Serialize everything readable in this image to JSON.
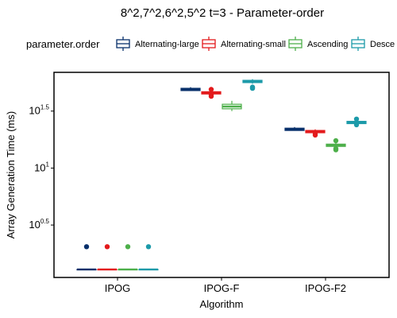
{
  "chart_data": {
    "type": "box",
    "title": "8^2,7^2,6^2,5^2 t=3 - Parameter-order",
    "xlabel": "Algorithm",
    "ylabel": "Array Generation Time (ms)",
    "y_scale": "log10",
    "ylim_log10": [
      0.04,
      1.84
    ],
    "y_ticks": [
      {
        "base": "10",
        "exp": "0.5",
        "value_log10": 0.5
      },
      {
        "base": "10",
        "exp": "1",
        "value_log10": 1.0
      },
      {
        "base": "10",
        "exp": "1.5",
        "value_log10": 1.5
      }
    ],
    "categories": [
      "IPOG",
      "IPOG-F",
      "IPOG-F2"
    ],
    "legend": {
      "title": "parameter.order",
      "placement": "top",
      "entries": [
        "Alternating-large",
        "Alternating-small",
        "Ascending",
        "Desce"
      ]
    },
    "series": [
      {
        "name": "Alternating-large",
        "color": "#08306b",
        "boxes_log10": [
          {
            "min": 0.11,
            "q1": 0.11,
            "median": 0.11,
            "q3": 0.11,
            "max": 0.11,
            "outliers": [
              0.31
            ]
          },
          {
            "min": 1.68,
            "q1": 1.68,
            "median": 1.69,
            "q3": 1.7,
            "max": 1.71,
            "outliers": []
          },
          {
            "min": 1.33,
            "q1": 1.33,
            "median": 1.34,
            "q3": 1.35,
            "max": 1.36,
            "outliers": []
          }
        ]
      },
      {
        "name": "Alternating-small",
        "color": "#e31a1c",
        "boxes_log10": [
          {
            "min": 0.11,
            "q1": 0.11,
            "median": 0.11,
            "q3": 0.11,
            "max": 0.11,
            "outliers": [
              0.31
            ]
          },
          {
            "min": 1.64,
            "q1": 1.65,
            "median": 1.66,
            "q3": 1.67,
            "max": 1.68,
            "outliers": [
              1.63,
              1.64,
              1.69
            ]
          },
          {
            "min": 1.3,
            "q1": 1.31,
            "median": 1.32,
            "q3": 1.33,
            "max": 1.34,
            "outliers": [
              1.29,
              1.3
            ]
          }
        ]
      },
      {
        "name": "Ascending",
        "color": "#4daf4a",
        "boxes_log10": [
          {
            "min": 0.11,
            "q1": 0.11,
            "median": 0.11,
            "q3": 0.11,
            "max": 0.11,
            "outliers": [
              0.31
            ]
          },
          {
            "min": 1.5,
            "q1": 1.52,
            "median": 1.54,
            "q3": 1.56,
            "max": 1.59,
            "outliers": []
          },
          {
            "min": 1.18,
            "q1": 1.19,
            "median": 1.2,
            "q3": 1.21,
            "max": 1.22,
            "outliers": [
              1.16,
              1.17,
              1.24
            ]
          }
        ]
      },
      {
        "name": "Desce",
        "color": "#1c9aa9",
        "boxes_log10": [
          {
            "min": 0.11,
            "q1": 0.11,
            "median": 0.11,
            "q3": 0.11,
            "max": 0.11,
            "outliers": [
              0.31
            ]
          },
          {
            "min": 1.74,
            "q1": 1.75,
            "median": 1.76,
            "q3": 1.77,
            "max": 1.78,
            "outliers": [
              1.7,
              1.71
            ]
          },
          {
            "min": 1.39,
            "q1": 1.39,
            "median": 1.4,
            "q3": 1.41,
            "max": 1.42,
            "outliers": [
              1.38,
              1.43
            ]
          }
        ]
      }
    ]
  }
}
